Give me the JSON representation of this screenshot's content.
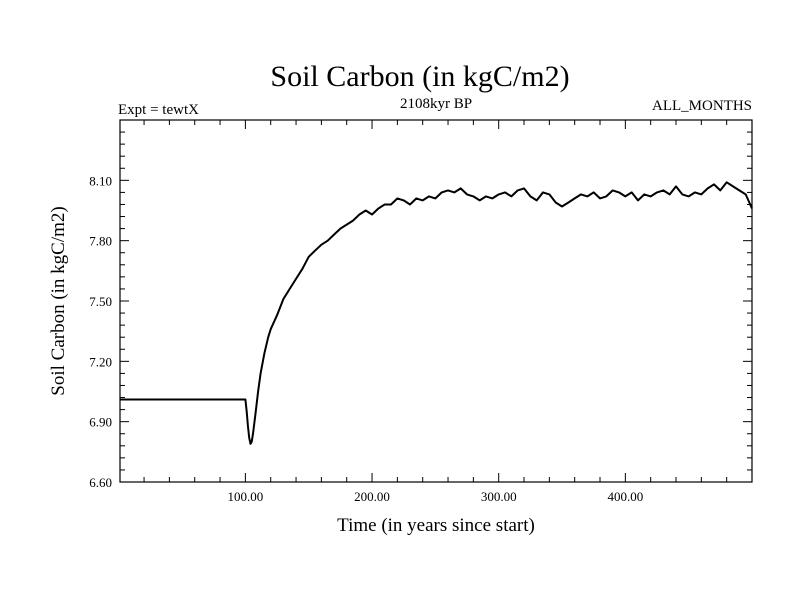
{
  "chart_data": {
    "type": "line",
    "title": "Soil Carbon (in kgC/m2)",
    "left_label": "Expt = tewtX",
    "center_label": "2108kyr BP",
    "right_label": "ALL_MONTHS",
    "xlabel": "Time (in years since start)",
    "ylabel": "Soil Carbon (in kgC/m2)",
    "xlim": [
      1,
      500
    ],
    "ylim": [
      6.6,
      8.4
    ],
    "x_ticks": [
      100,
      200,
      300,
      400
    ],
    "x_tick_labels": [
      "100.00",
      "200.00",
      "300.00",
      "400.00"
    ],
    "y_ticks": [
      6.6,
      6.9,
      7.2,
      7.5,
      7.8,
      8.1
    ],
    "y_tick_labels": [
      "6.60",
      "6.90",
      "7.20",
      "7.50",
      "7.80",
      "8.10"
    ],
    "series": [
      {
        "name": "Soil Carbon",
        "color": "#000000",
        "x": [
          1,
          100,
          101,
          102,
          103,
          104,
          105,
          106,
          108,
          110,
          112,
          115,
          118,
          120,
          125,
          130,
          135,
          140,
          145,
          150,
          155,
          160,
          165,
          170,
          175,
          180,
          185,
          190,
          195,
          200,
          205,
          210,
          215,
          220,
          225,
          230,
          235,
          240,
          245,
          250,
          255,
          260,
          265,
          270,
          275,
          280,
          285,
          290,
          295,
          300,
          305,
          310,
          315,
          320,
          325,
          330,
          335,
          340,
          345,
          350,
          355,
          360,
          365,
          370,
          375,
          380,
          385,
          390,
          395,
          400,
          405,
          410,
          415,
          420,
          425,
          430,
          435,
          440,
          445,
          450,
          455,
          460,
          465,
          470,
          475,
          480,
          485,
          490,
          495,
          500
        ],
        "values": [
          7.01,
          7.01,
          6.95,
          6.88,
          6.82,
          6.79,
          6.8,
          6.84,
          6.94,
          7.05,
          7.14,
          7.24,
          7.32,
          7.36,
          7.43,
          7.51,
          7.56,
          7.61,
          7.66,
          7.72,
          7.75,
          7.78,
          7.8,
          7.83,
          7.86,
          7.88,
          7.9,
          7.93,
          7.95,
          7.93,
          7.96,
          7.98,
          7.98,
          8.01,
          8.0,
          7.98,
          8.01,
          8.0,
          8.02,
          8.01,
          8.04,
          8.05,
          8.04,
          8.06,
          8.03,
          8.02,
          8.0,
          8.02,
          8.01,
          8.03,
          8.04,
          8.02,
          8.05,
          8.06,
          8.02,
          8.0,
          8.04,
          8.03,
          7.99,
          7.97,
          7.99,
          8.01,
          8.03,
          8.02,
          8.04,
          8.01,
          8.02,
          8.05,
          8.04,
          8.02,
          8.04,
          8.0,
          8.03,
          8.02,
          8.04,
          8.05,
          8.03,
          8.07,
          8.03,
          8.02,
          8.04,
          8.03,
          8.06,
          8.08,
          8.05,
          8.09,
          8.07,
          8.05,
          8.03,
          7.96
        ]
      }
    ]
  }
}
